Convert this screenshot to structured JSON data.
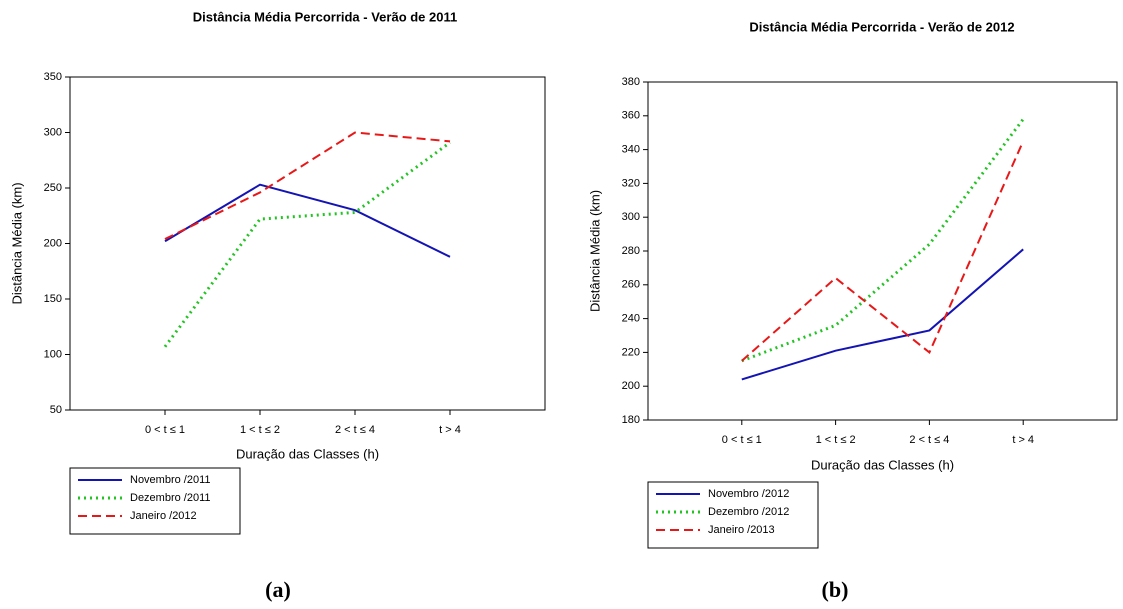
{
  "chart_data": [
    {
      "type": "line",
      "title": "Distância Média Percorrida - Verão de 2011",
      "x_label": "Duração das Classes (h)",
      "y_label": "Distância Média (km)",
      "categories": [
        "0 < t ≤ 1",
        "1 < t ≤ 2",
        "2 < t ≤ 4",
        "t > 4"
      ],
      "series": [
        {
          "name": "Novembro /2011",
          "color": "#1414b4",
          "style": "solid",
          "values": [
            202,
            253,
            230,
            188
          ]
        },
        {
          "name": "Dezembro /2011",
          "color": "#22c422",
          "style": "dotted",
          "values": [
            107,
            222,
            228,
            291
          ]
        },
        {
          "name": "Janeiro /2012",
          "color": "#e81818",
          "style": "dashed",
          "values": [
            204,
            246,
            300,
            292
          ]
        }
      ],
      "ylim": [
        50,
        350
      ],
      "yticks": [
        50,
        100,
        150,
        200,
        250,
        300,
        350
      ],
      "grid": false,
      "caption": "(a)"
    },
    {
      "type": "line",
      "title": "Distância Média Percorrida - Verão de 2012",
      "x_label": "Duração das Classes (h)",
      "y_label": "Distância Média (km)",
      "categories": [
        "0 < t ≤ 1",
        "1 < t ≤ 2",
        "2 < t ≤ 4",
        "t > 4"
      ],
      "series": [
        {
          "name": "Novembro /2012",
          "color": "#1414b4",
          "style": "solid",
          "values": [
            204,
            221,
            233,
            281
          ]
        },
        {
          "name": "Dezembro /2012",
          "color": "#22c422",
          "style": "dotted",
          "values": [
            215,
            236,
            284,
            358
          ]
        },
        {
          "name": "Janeiro /2013",
          "color": "#e81818",
          "style": "dashed",
          "values": [
            215,
            264,
            220,
            345
          ]
        }
      ],
      "ylim": [
        180,
        380
      ],
      "yticks": [
        180,
        200,
        220,
        240,
        260,
        280,
        300,
        320,
        340,
        360,
        380
      ],
      "grid": false,
      "caption": "(b)"
    }
  ]
}
